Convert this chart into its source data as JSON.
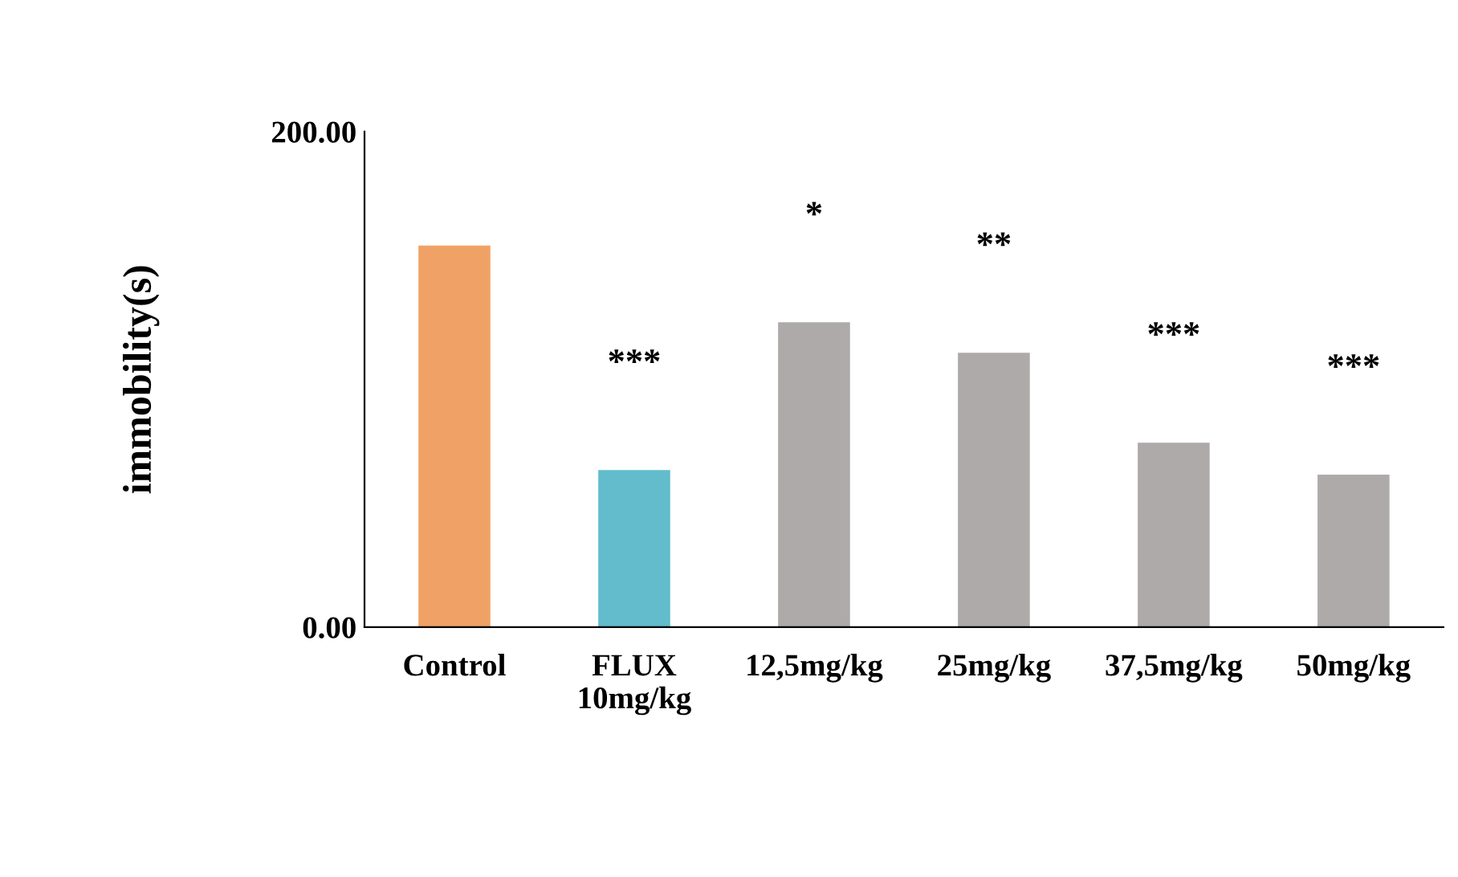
{
  "chart_data": {
    "type": "bar",
    "categories": [
      "Control",
      "FLUX\n10mg/kg",
      "12,5mg/kg",
      "25mg/kg",
      "37,5mg/kg",
      "50mg/kg"
    ],
    "values": [
      154,
      63.4,
      123,
      110.7,
      74.4,
      61.5
    ],
    "colors": [
      "#f0a266",
      "#62bccc",
      "#aeaaaa",
      "#aeaaaa",
      "#aeaaaa",
      "#aeaaaa"
    ],
    "ylabel": "immobility(s)",
    "ylim": [
      0,
      200
    ],
    "yticks": [
      {
        "value": 0,
        "label": "0.00"
      },
      {
        "value": 200,
        "label": "200.00"
      }
    ],
    "grid": false,
    "value_labels": [
      null,
      "***",
      "*",
      "**",
      "***",
      "***"
    ]
  }
}
